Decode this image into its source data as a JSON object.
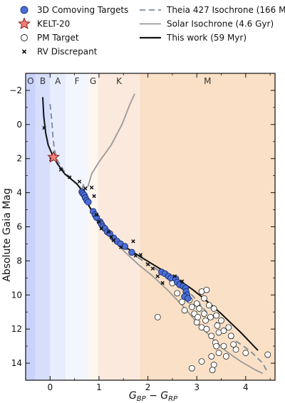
{
  "chart_data": {
    "type": "scatter",
    "title": "",
    "xlabel": "G_BP − G_RP",
    "xlabel_base": "G",
    "xlabel_sub1": "BP",
    "xlabel_sub2": "RP",
    "ylabel": "Absolute Gaia Mag",
    "xlim": [
      -0.5,
      4.6
    ],
    "ylim": [
      15.0,
      -3.0
    ],
    "y_inverted": true,
    "grid": false,
    "legend_placement": "top",
    "xticks": [
      0,
      1,
      2,
      3,
      4
    ],
    "yticks": [
      -2,
      0,
      2,
      4,
      6,
      8,
      10,
      12,
      14
    ],
    "spectral_bands": [
      {
        "label": "O",
        "x0": -0.5,
        "x1": -0.3,
        "color": "#c8d2fb"
      },
      {
        "label": "B",
        "x0": -0.3,
        "x1": 0.0,
        "color": "#d6defc"
      },
      {
        "label": "A",
        "x0": 0.0,
        "x1": 0.32,
        "color": "#e7ecfe"
      },
      {
        "label": "F",
        "x0": 0.32,
        "x1": 0.78,
        "color": "#f4f6ff"
      },
      {
        "label": "G",
        "x0": 0.78,
        "x1": 0.98,
        "color": "#fdf7f0"
      },
      {
        "label": "K",
        "x0": 0.98,
        "x1": 1.84,
        "color": "#fbe9dd"
      },
      {
        "label": "M",
        "x0": 1.84,
        "x1": 4.6,
        "color": "#f9e0c6"
      }
    ],
    "legend": [
      {
        "key": "comoving",
        "label": "3D Comoving Targets"
      },
      {
        "key": "kelt",
        "label": "KELT-20"
      },
      {
        "key": "pm",
        "label": "PM Target"
      },
      {
        "key": "rv",
        "label": "RV Discrepant"
      },
      {
        "key": "theia",
        "label": "Theia 427 Isochrone (166 Myr)"
      },
      {
        "key": "solar",
        "label": "Solar Isochrone (4.6 Gyr)"
      },
      {
        "key": "thiswork",
        "label": "This work (59 Myr)"
      }
    ],
    "series": [
      {
        "key": "thiswork",
        "color": "#111111",
        "points": [
          [
            -0.15,
            -1.6
          ],
          [
            -0.13,
            -0.5
          ],
          [
            -0.09,
            0.5
          ],
          [
            -0.04,
            1.2
          ],
          [
            0.05,
            1.8
          ],
          [
            0.15,
            2.3
          ],
          [
            0.3,
            2.9
          ],
          [
            0.45,
            3.25
          ],
          [
            0.55,
            3.5
          ],
          [
            0.65,
            3.85
          ],
          [
            0.72,
            4.3
          ],
          [
            0.8,
            4.8
          ],
          [
            0.9,
            5.3
          ],
          [
            1.0,
            5.8
          ],
          [
            1.1,
            6.2
          ],
          [
            1.3,
            6.7
          ],
          [
            1.5,
            7.1
          ],
          [
            1.7,
            7.5
          ],
          [
            1.9,
            7.85
          ],
          [
            2.1,
            8.2
          ],
          [
            2.3,
            8.55
          ],
          [
            2.5,
            8.9
          ],
          [
            2.7,
            9.25
          ],
          [
            2.9,
            9.65
          ],
          [
            3.1,
            10.1
          ],
          [
            3.3,
            10.6
          ],
          [
            3.5,
            11.1
          ],
          [
            3.7,
            11.65
          ],
          [
            3.9,
            12.2
          ],
          [
            4.1,
            12.8
          ],
          [
            4.25,
            13.25
          ]
        ]
      },
      {
        "key": "theia",
        "color": "#7a8a99",
        "dash": "8,5",
        "points": [
          [
            0.0,
            -1.2
          ],
          [
            0.04,
            0.0
          ],
          [
            0.06,
            0.8
          ],
          [
            0.09,
            1.5
          ],
          [
            0.15,
            2.1
          ],
          [
            0.3,
            2.8
          ],
          [
            0.45,
            3.2
          ],
          [
            0.55,
            3.5
          ],
          [
            0.65,
            3.9
          ],
          [
            0.72,
            4.3
          ],
          [
            0.8,
            4.8
          ],
          [
            0.9,
            5.3
          ],
          [
            1.0,
            5.8
          ],
          [
            1.2,
            6.5
          ],
          [
            1.4,
            7.0
          ],
          [
            1.7,
            7.6
          ],
          [
            2.0,
            8.2
          ],
          [
            2.3,
            8.7
          ],
          [
            2.6,
            9.3
          ],
          [
            2.9,
            10.0
          ],
          [
            3.2,
            11.0
          ],
          [
            3.5,
            11.9
          ],
          [
            3.8,
            12.7
          ],
          [
            4.1,
            13.3
          ],
          [
            4.35,
            14.0
          ],
          [
            4.45,
            14.55
          ]
        ]
      },
      {
        "key": "solar",
        "color": "#9a9a9a",
        "points": [
          [
            1.73,
            -1.8
          ],
          [
            1.62,
            -1.1
          ],
          [
            1.47,
            0.0
          ],
          [
            1.25,
            1.2
          ],
          [
            1.0,
            2.2
          ],
          [
            0.85,
            2.9
          ],
          [
            0.78,
            3.6
          ],
          [
            0.7,
            3.8
          ],
          [
            0.68,
            3.5
          ],
          [
            0.66,
            3.7
          ],
          [
            0.68,
            4.2
          ],
          [
            0.75,
            4.6
          ],
          [
            0.85,
            5.0
          ],
          [
            0.97,
            5.6
          ],
          [
            1.1,
            6.1
          ],
          [
            1.3,
            6.8
          ],
          [
            1.5,
            7.4
          ],
          [
            1.8,
            8.2
          ],
          [
            2.1,
            8.9
          ],
          [
            2.4,
            9.7
          ],
          [
            2.7,
            10.6
          ],
          [
            3.0,
            11.6
          ],
          [
            3.3,
            12.5
          ],
          [
            3.6,
            13.3
          ],
          [
            3.9,
            13.9
          ],
          [
            4.2,
            14.4
          ],
          [
            4.35,
            14.6
          ]
        ]
      }
    ],
    "comoving": [
      [
        0.65,
        3.95
      ],
      [
        0.67,
        4.05
      ],
      [
        0.7,
        4.15
      ],
      [
        0.72,
        4.3
      ],
      [
        0.75,
        4.45
      ],
      [
        0.78,
        4.55
      ],
      [
        0.88,
        5.1
      ],
      [
        0.92,
        5.3
      ],
      [
        0.95,
        5.45
      ],
      [
        1.02,
        5.7
      ],
      [
        1.05,
        5.85
      ],
      [
        1.08,
        6.0
      ],
      [
        1.12,
        6.1
      ],
      [
        1.17,
        6.3
      ],
      [
        1.22,
        6.4
      ],
      [
        1.3,
        6.65
      ],
      [
        1.37,
        6.85
      ],
      [
        1.44,
        7.0
      ],
      [
        1.53,
        7.15
      ],
      [
        1.67,
        7.5
      ],
      [
        2.28,
        8.65
      ],
      [
        2.35,
        8.75
      ],
      [
        2.42,
        8.9
      ],
      [
        2.47,
        9.0
      ],
      [
        2.57,
        9.05
      ],
      [
        2.6,
        9.25
      ],
      [
        2.65,
        9.4
      ],
      [
        2.72,
        9.5
      ],
      [
        2.77,
        9.6
      ],
      [
        2.78,
        9.8
      ],
      [
        2.8,
        10.0
      ],
      [
        2.75,
        10.1
      ],
      [
        2.82,
        10.2
      ]
    ],
    "kelt": [
      [
        0.07,
        1.92
      ]
    ],
    "pm": [
      [
        2.2,
        11.3
      ],
      [
        2.5,
        9.3
      ],
      [
        2.6,
        9.9
      ],
      [
        2.7,
        10.4
      ],
      [
        2.75,
        10.9
      ],
      [
        2.85,
        10.3
      ],
      [
        2.9,
        10.7
      ],
      [
        2.95,
        11.1
      ],
      [
        3.0,
        10.5
      ],
      [
        3.0,
        11.6
      ],
      [
        3.02,
        11.3
      ],
      [
        3.05,
        10.8
      ],
      [
        3.1,
        9.8
      ],
      [
        3.1,
        11.9
      ],
      [
        3.15,
        10.2
      ],
      [
        3.15,
        11.1
      ],
      [
        3.18,
        11.5
      ],
      [
        3.2,
        12.0
      ],
      [
        3.2,
        9.7
      ],
      [
        3.25,
        10.6
      ],
      [
        3.28,
        11.3
      ],
      [
        3.3,
        12.4
      ],
      [
        3.35,
        10.8
      ],
      [
        3.38,
        12.8
      ],
      [
        3.4,
        11.2
      ],
      [
        3.42,
        11.8
      ],
      [
        3.45,
        12.2
      ],
      [
        3.5,
        11.5
      ],
      [
        3.55,
        12.1
      ],
      [
        3.3,
        13.6
      ],
      [
        3.35,
        14.1
      ],
      [
        3.32,
        14.4
      ],
      [
        3.1,
        13.9
      ],
      [
        3.4,
        13.0
      ],
      [
        3.45,
        13.4
      ],
      [
        3.55,
        13.0
      ],
      [
        3.6,
        13.6
      ],
      [
        3.65,
        11.9
      ],
      [
        3.7,
        12.4
      ],
      [
        3.75,
        12.9
      ],
      [
        3.8,
        13.2
      ],
      [
        4.0,
        13.4
      ],
      [
        4.45,
        13.5
      ],
      [
        2.9,
        14.3
      ]
    ],
    "rv": [
      [
        -0.12,
        0.2
      ],
      [
        0.02,
        2.05
      ],
      [
        0.22,
        2.65
      ],
      [
        0.4,
        3.1
      ],
      [
        0.6,
        3.35
      ],
      [
        0.72,
        3.75
      ],
      [
        0.85,
        3.7
      ],
      [
        0.9,
        4.2
      ],
      [
        0.95,
        5.3
      ],
      [
        1.0,
        5.7
      ],
      [
        1.05,
        6.1
      ],
      [
        1.25,
        6.6
      ],
      [
        1.2,
        6.3
      ],
      [
        1.3,
        6.8
      ],
      [
        1.45,
        7.2
      ],
      [
        1.7,
        6.85
      ],
      [
        1.75,
        7.7
      ],
      [
        1.85,
        7.65
      ],
      [
        2.0,
        8.2
      ],
      [
        2.1,
        8.45
      ],
      [
        2.2,
        8.9
      ],
      [
        2.3,
        9.3
      ],
      [
        2.55,
        8.9
      ],
      [
        2.7,
        9.2
      ]
    ]
  }
}
